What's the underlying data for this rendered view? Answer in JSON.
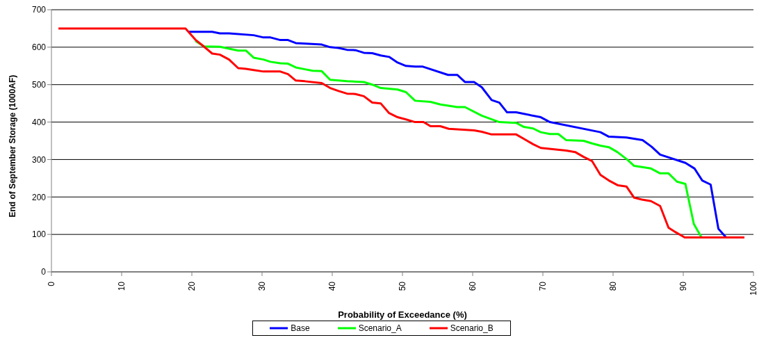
{
  "chart_data": {
    "type": "line",
    "xlabel": "Probability of Exceedance (%)",
    "ylabel": "End of September Storage (1000AF)",
    "xlim": [
      0,
      100
    ],
    "xticks": [
      0,
      10,
      20,
      30,
      40,
      50,
      60,
      70,
      80,
      90,
      100
    ],
    "ylim": [
      0,
      700
    ],
    "yticks": [
      0,
      100,
      200,
      300,
      400,
      500,
      600,
      700
    ],
    "grid": "y",
    "legend": "bottom",
    "marker": "none",
    "line_style": "solid",
    "series": [
      {
        "name": "Base",
        "color": "#0000ff",
        "x": [
          19.5,
          22.9,
          24,
          25.3,
          28.8,
          30.2,
          31.2,
          32.6,
          33.7,
          34.8,
          38.5,
          39.7,
          40.9,
          42.1,
          43.3,
          44.5,
          45.7,
          46.9,
          48.1,
          49.3,
          50.5,
          51.8,
          52.9,
          56.5,
          57.8,
          58.9,
          60.2,
          61.3,
          62.7,
          63.8,
          64.9,
          66.2,
          69.7,
          71,
          78.2,
          79.4,
          81.9,
          84.2,
          85.5,
          86.7,
          90.3,
          91.6,
          92.7,
          93.9,
          95,
          96.1
        ],
        "values": [
          641,
          641,
          637,
          637,
          632,
          626,
          626,
          619,
          619,
          611,
          607,
          600,
          598,
          593,
          592,
          585,
          584,
          578,
          574,
          559,
          550,
          548,
          548,
          526,
          526,
          507,
          507,
          493,
          459,
          452,
          426,
          426,
          413,
          400,
          373,
          361,
          359,
          352,
          334,
          313,
          291,
          276,
          244,
          233,
          115,
          92
        ]
      },
      {
        "name": "Scenario_A",
        "color": "#00ff00",
        "x": [
          20.5,
          21.7,
          24,
          26.6,
          27.7,
          28.8,
          30.2,
          31.2,
          32.6,
          33.7,
          34.8,
          36.1,
          37.2,
          38.5,
          39.7,
          42.1,
          44.5,
          45.7,
          46.9,
          49.3,
          50.5,
          51.8,
          54,
          55.4,
          57.8,
          58.9,
          61.3,
          63.8,
          66.2,
          67.3,
          68.6,
          69.7,
          71,
          72.2,
          73.3,
          75.8,
          77,
          78.2,
          79.4,
          80.6,
          82,
          83,
          85.4,
          86.7,
          87.9,
          89.1,
          90.3,
          91.5,
          92.6
        ],
        "values": [
          617,
          602,
          601,
          591,
          591,
          572,
          567,
          561,
          557,
          556,
          546,
          541,
          537,
          536,
          513,
          509,
          507,
          500,
          491,
          487,
          480,
          457,
          454,
          447,
          440,
          440,
          417,
          400,
          398,
          387,
          383,
          373,
          368,
          368,
          352,
          350,
          343,
          337,
          333,
          320,
          300,
          283,
          276,
          263,
          263,
          241,
          235,
          128,
          92
        ]
      },
      {
        "name": "Scenario_B",
        "color": "#ff0000",
        "x": [
          1,
          19.1,
          20.5,
          21.7,
          22.9,
          24,
          25.3,
          26.6,
          27.7,
          28.8,
          30.2,
          32.6,
          33.7,
          34.8,
          36.1,
          38.5,
          39.7,
          40.9,
          42.1,
          43.3,
          44.5,
          45.7,
          46.9,
          48.1,
          49.3,
          50.5,
          51.8,
          53,
          54,
          55.4,
          56.6,
          60.2,
          61.3,
          62.7,
          66.2,
          67.3,
          68.6,
          69.7,
          73.3,
          74.6,
          75.8,
          77,
          78.2,
          79.4,
          80.7,
          81.9,
          83,
          84.1,
          85.4,
          86.7,
          87.9,
          88.9,
          90.2,
          98.7
        ],
        "values": [
          650,
          650,
          620,
          602,
          583,
          580,
          567,
          544,
          542,
          539,
          535,
          535,
          528,
          511,
          509,
          504,
          491,
          483,
          476,
          475,
          469,
          452,
          450,
          424,
          413,
          407,
          400,
          400,
          389,
          389,
          382,
          378,
          374,
          367,
          367,
          355,
          341,
          331,
          324,
          320,
          307,
          296,
          259,
          244,
          231,
          228,
          198,
          193,
          189,
          176,
          118,
          106,
          92,
          92
        ]
      }
    ]
  }
}
